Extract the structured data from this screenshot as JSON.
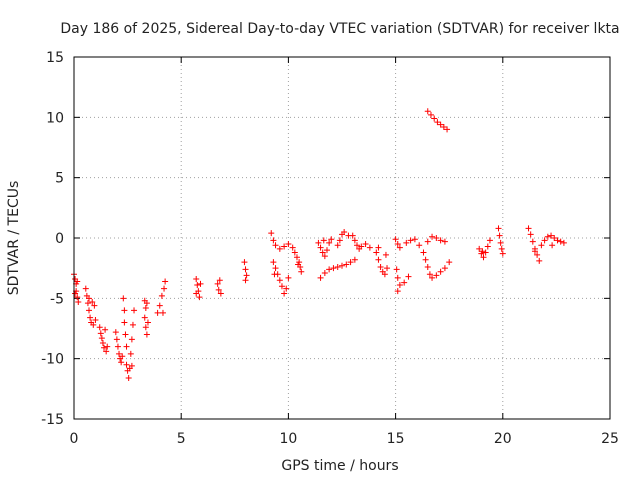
{
  "chart_data": {
    "type": "scatter",
    "title": "Day 186 of 2025, Sidereal Day-to-day VTEC variation (SDTVAR) for receiver lkta",
    "xlabel": "GPS time / hours",
    "ylabel": "SDTVAR / TECUs",
    "xlim": [
      0,
      25
    ],
    "ylim": [
      -15,
      15
    ],
    "xticks": [
      0,
      5,
      10,
      15,
      20,
      25
    ],
    "yticks": [
      -15,
      -10,
      -5,
      0,
      5,
      10,
      15
    ],
    "xtick_labels": [
      "0",
      "5",
      "10",
      "15",
      "20",
      "25"
    ],
    "ytick_labels": [
      "-15",
      "-10",
      "-5",
      "0",
      "5",
      "10",
      "15"
    ],
    "grid": true,
    "marker": "+",
    "color": "#ff0000",
    "series": [
      {
        "name": "SDTVAR",
        "points": [
          [
            0.0,
            -3.0
          ],
          [
            0.05,
            -3.4
          ],
          [
            0.1,
            -3.8
          ],
          [
            0.1,
            -4.4
          ],
          [
            0.15,
            -4.9
          ],
          [
            0.2,
            -5.3
          ],
          [
            0.15,
            -3.6
          ],
          [
            0.05,
            -4.6
          ],
          [
            0.55,
            -4.2
          ],
          [
            0.6,
            -4.8
          ],
          [
            0.65,
            -5.4
          ],
          [
            0.7,
            -6.0
          ],
          [
            0.75,
            -6.6
          ],
          [
            0.8,
            -7.0
          ],
          [
            0.9,
            -7.2
          ],
          [
            1.0,
            -6.8
          ],
          [
            0.85,
            -5.3
          ],
          [
            0.95,
            -5.6
          ],
          [
            0.7,
            -5.0
          ],
          [
            1.2,
            -7.4
          ],
          [
            1.25,
            -7.9
          ],
          [
            1.3,
            -8.3
          ],
          [
            1.35,
            -8.7
          ],
          [
            1.4,
            -9.1
          ],
          [
            1.5,
            -9.4
          ],
          [
            1.55,
            -9.0
          ],
          [
            1.45,
            -7.6
          ],
          [
            1.95,
            -7.8
          ],
          [
            2.0,
            -8.4
          ],
          [
            2.05,
            -9.0
          ],
          [
            2.1,
            -9.6
          ],
          [
            2.15,
            -10.0
          ],
          [
            2.2,
            -10.3
          ],
          [
            2.25,
            -9.8
          ],
          [
            2.3,
            -5.0
          ],
          [
            2.35,
            -6.0
          ],
          [
            2.35,
            -7.0
          ],
          [
            2.4,
            -8.0
          ],
          [
            2.45,
            -9.0
          ],
          [
            2.45,
            -10.5
          ],
          [
            2.5,
            -11.0
          ],
          [
            2.55,
            -11.6
          ],
          [
            2.6,
            -10.8
          ],
          [
            2.65,
            -9.6
          ],
          [
            2.7,
            -8.4
          ],
          [
            2.75,
            -7.2
          ],
          [
            2.8,
            -6.0
          ],
          [
            2.7,
            -10.6
          ],
          [
            3.3,
            -5.2
          ],
          [
            3.35,
            -5.8
          ],
          [
            3.3,
            -6.6
          ],
          [
            3.35,
            -7.4
          ],
          [
            3.4,
            -8.0
          ],
          [
            3.45,
            -7.0
          ],
          [
            3.4,
            -5.4
          ],
          [
            3.9,
            -6.2
          ],
          [
            4.0,
            -5.6
          ],
          [
            4.1,
            -4.8
          ],
          [
            4.2,
            -4.2
          ],
          [
            4.25,
            -3.6
          ],
          [
            4.15,
            -6.2
          ],
          [
            5.7,
            -3.4
          ],
          [
            5.75,
            -3.9
          ],
          [
            5.8,
            -4.4
          ],
          [
            5.85,
            -4.9
          ],
          [
            5.7,
            -4.6
          ],
          [
            5.9,
            -3.8
          ],
          [
            6.7,
            -3.8
          ],
          [
            6.75,
            -4.3
          ],
          [
            6.8,
            -3.5
          ],
          [
            6.85,
            -4.6
          ],
          [
            7.95,
            -2.0
          ],
          [
            8.0,
            -2.6
          ],
          [
            8.05,
            -3.1
          ],
          [
            8.0,
            -3.5
          ],
          [
            9.2,
            0.4
          ],
          [
            9.3,
            -0.2
          ],
          [
            9.4,
            -0.6
          ],
          [
            9.6,
            -0.9
          ],
          [
            9.8,
            -0.7
          ],
          [
            10.0,
            -0.5
          ],
          [
            10.2,
            -0.8
          ],
          [
            9.3,
            -2.0
          ],
          [
            9.4,
            -2.5
          ],
          [
            9.5,
            -3.0
          ],
          [
            9.6,
            -3.5
          ],
          [
            9.7,
            -4.0
          ],
          [
            9.8,
            -4.6
          ],
          [
            9.9,
            -4.2
          ],
          [
            10.0,
            -3.3
          ],
          [
            9.35,
            -3.0
          ],
          [
            10.3,
            -1.2
          ],
          [
            10.4,
            -1.6
          ],
          [
            10.5,
            -2.0
          ],
          [
            10.55,
            -2.4
          ],
          [
            10.6,
            -2.8
          ],
          [
            10.45,
            -2.2
          ],
          [
            11.4,
            -0.4
          ],
          [
            11.5,
            -0.8
          ],
          [
            11.6,
            -1.2
          ],
          [
            11.7,
            -1.5
          ],
          [
            11.8,
            -1.0
          ],
          [
            11.9,
            -0.4
          ],
          [
            12.0,
            -0.1
          ],
          [
            11.65,
            -0.2
          ],
          [
            11.5,
            -3.3
          ],
          [
            11.7,
            -2.9
          ],
          [
            11.9,
            -2.6
          ],
          [
            12.1,
            -2.5
          ],
          [
            12.3,
            -2.4
          ],
          [
            12.5,
            -2.3
          ],
          [
            12.7,
            -2.2
          ],
          [
            12.9,
            -2.0
          ],
          [
            13.1,
            -1.8
          ],
          [
            12.3,
            -0.6
          ],
          [
            12.4,
            -0.2
          ],
          [
            12.5,
            0.3
          ],
          [
            12.6,
            0.5
          ],
          [
            12.8,
            0.2
          ],
          [
            13.0,
            0.2
          ],
          [
            13.1,
            -0.2
          ],
          [
            13.2,
            -0.6
          ],
          [
            13.3,
            -0.9
          ],
          [
            13.4,
            -0.7
          ],
          [
            13.6,
            -0.5
          ],
          [
            13.8,
            -0.8
          ],
          [
            14.1,
            -1.2
          ],
          [
            14.2,
            -1.8
          ],
          [
            14.3,
            -2.4
          ],
          [
            14.4,
            -2.8
          ],
          [
            14.5,
            -3.0
          ],
          [
            14.6,
            -2.5
          ],
          [
            14.55,
            -1.4
          ],
          [
            14.2,
            -0.8
          ],
          [
            15.0,
            -0.1
          ],
          [
            15.1,
            -0.5
          ],
          [
            15.2,
            -0.8
          ],
          [
            15.05,
            -2.6
          ],
          [
            15.1,
            -3.3
          ],
          [
            15.2,
            -3.9
          ],
          [
            15.1,
            -4.4
          ],
          [
            15.4,
            -3.7
          ],
          [
            15.6,
            -3.2
          ],
          [
            15.5,
            -0.4
          ],
          [
            15.7,
            -0.2
          ],
          [
            15.9,
            -0.1
          ],
          [
            16.1,
            -0.6
          ],
          [
            16.3,
            -1.2
          ],
          [
            16.4,
            -1.8
          ],
          [
            16.5,
            -2.4
          ],
          [
            16.6,
            -3.0
          ],
          [
            16.7,
            -3.3
          ],
          [
            16.9,
            -3.1
          ],
          [
            17.1,
            -2.8
          ],
          [
            17.3,
            -2.5
          ],
          [
            17.5,
            -2.0
          ],
          [
            16.5,
            -0.3
          ],
          [
            16.7,
            0.1
          ],
          [
            16.9,
            0.0
          ],
          [
            17.1,
            -0.2
          ],
          [
            17.3,
            -0.3
          ],
          [
            16.5,
            10.5
          ],
          [
            16.65,
            10.2
          ],
          [
            16.8,
            9.9
          ],
          [
            16.95,
            9.6
          ],
          [
            17.1,
            9.4
          ],
          [
            17.25,
            9.2
          ],
          [
            17.4,
            9.0
          ],
          [
            18.9,
            -0.9
          ],
          [
            19.0,
            -1.3
          ],
          [
            19.1,
            -1.6
          ],
          [
            19.2,
            -1.2
          ],
          [
            19.3,
            -0.7
          ],
          [
            19.4,
            -0.2
          ],
          [
            19.05,
            -1.1
          ],
          [
            19.8,
            0.8
          ],
          [
            19.85,
            0.2
          ],
          [
            19.9,
            -0.4
          ],
          [
            19.95,
            -0.9
          ],
          [
            20.0,
            -1.3
          ],
          [
            21.2,
            0.8
          ],
          [
            21.3,
            0.3
          ],
          [
            21.4,
            -0.3
          ],
          [
            21.5,
            -0.9
          ],
          [
            21.6,
            -1.4
          ],
          [
            21.7,
            -1.9
          ],
          [
            21.5,
            -1.1
          ],
          [
            21.8,
            -0.6
          ],
          [
            21.95,
            -0.2
          ],
          [
            22.1,
            0.1
          ],
          [
            22.25,
            0.2
          ],
          [
            22.4,
            0.0
          ],
          [
            22.55,
            -0.2
          ],
          [
            22.7,
            -0.3
          ],
          [
            22.85,
            -0.4
          ],
          [
            22.3,
            -0.6
          ]
        ]
      }
    ]
  }
}
